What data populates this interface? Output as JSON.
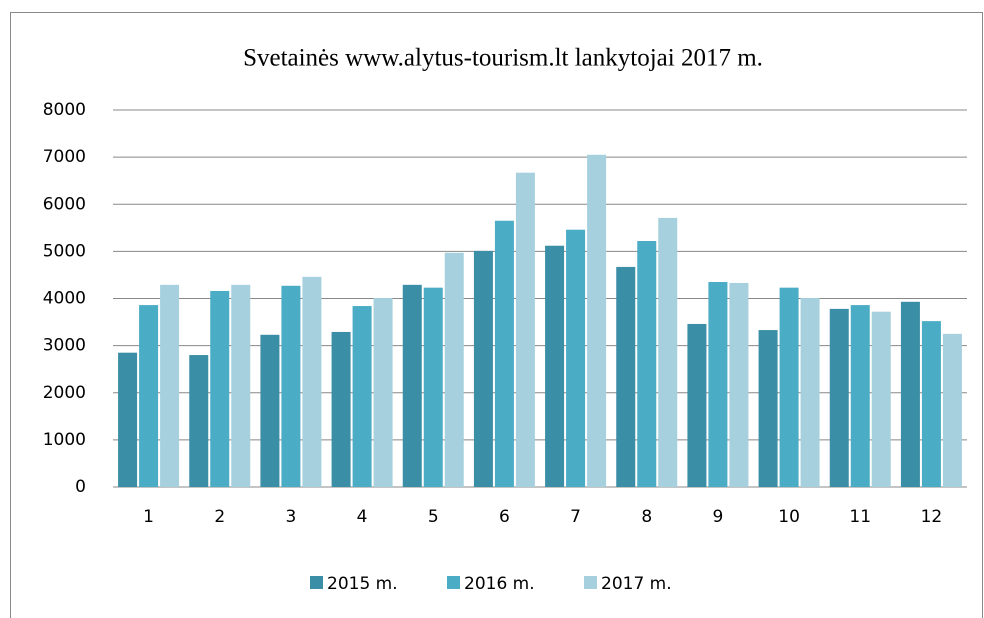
{
  "chart_data": {
    "type": "bar",
    "title": "Svetainės www.alytus-tourism.lt lankytojai 2017 m.",
    "categories": [
      "1",
      "2",
      "3",
      "4",
      "5",
      "6",
      "7",
      "8",
      "9",
      "10",
      "11",
      "12"
    ],
    "series": [
      {
        "name": "2015 m.",
        "color": "#3a8ea5",
        "values": [
          2850,
          2800,
          3230,
          3290,
          4290,
          5010,
          5120,
          4670,
          3460,
          3330,
          3780,
          3930
        ]
      },
      {
        "name": "2016 m.",
        "color": "#4bacc6",
        "values": [
          3860,
          4160,
          4270,
          3840,
          4230,
          5650,
          5460,
          5220,
          4350,
          4230,
          3860,
          3520
        ]
      },
      {
        "name": "2017 m.",
        "color": "#a6d0dd",
        "values": [
          4290,
          4290,
          4460,
          4010,
          4970,
          6670,
          7050,
          5710,
          4330,
          4010,
          3720,
          3250
        ]
      }
    ],
    "ylim": [
      0,
      8000
    ],
    "yticks": [
      0,
      1000,
      2000,
      3000,
      4000,
      5000,
      6000,
      7000,
      8000
    ],
    "grid": true,
    "legend": "bottom"
  }
}
